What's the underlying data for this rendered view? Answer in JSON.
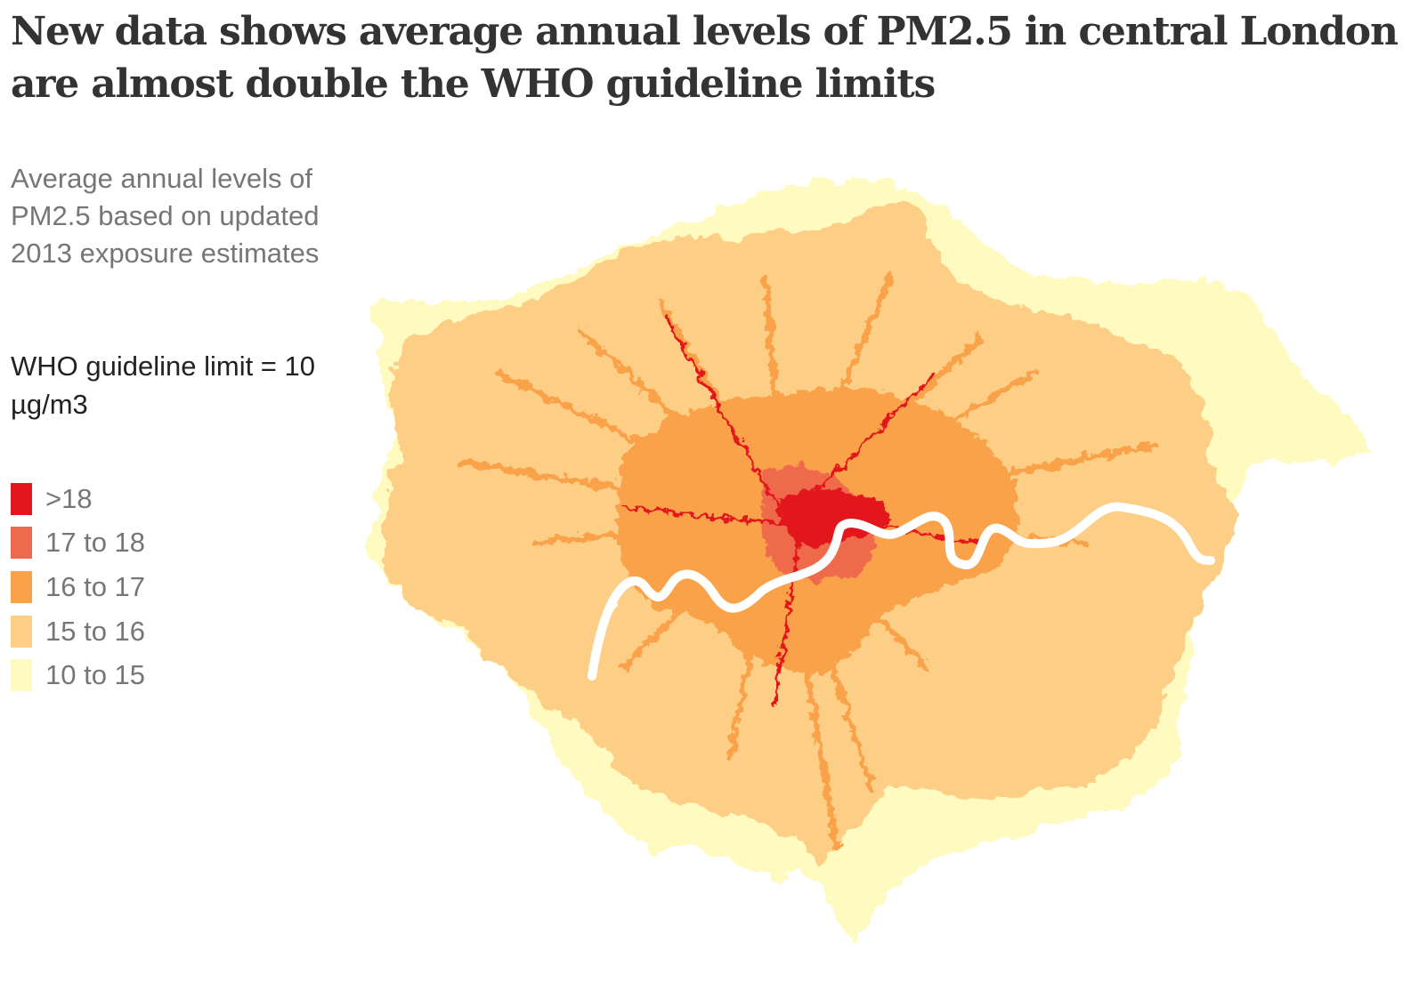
{
  "headline": "New data shows average annual levels of PM2.5 in central London are almost double the WHO guideline limits",
  "subtitle": "Average annual levels of PM2.5 based on updated 2013 exposure estimates",
  "who_note": "WHO guideline limit = 10 µg/m3",
  "legend": [
    {
      "label": ">18",
      "color": "#e3161e"
    },
    {
      "label": "17 to 18",
      "color": "#ee6a4c"
    },
    {
      "label": "16 to 17",
      "color": "#f9a24a"
    },
    {
      "label": "15 to 16",
      "color": "#fdcf86"
    },
    {
      "label": "10 to 15",
      "color": "#fffac0"
    }
  ],
  "colors": {
    "river": "#ffffff",
    "background": "#ffffff"
  }
}
